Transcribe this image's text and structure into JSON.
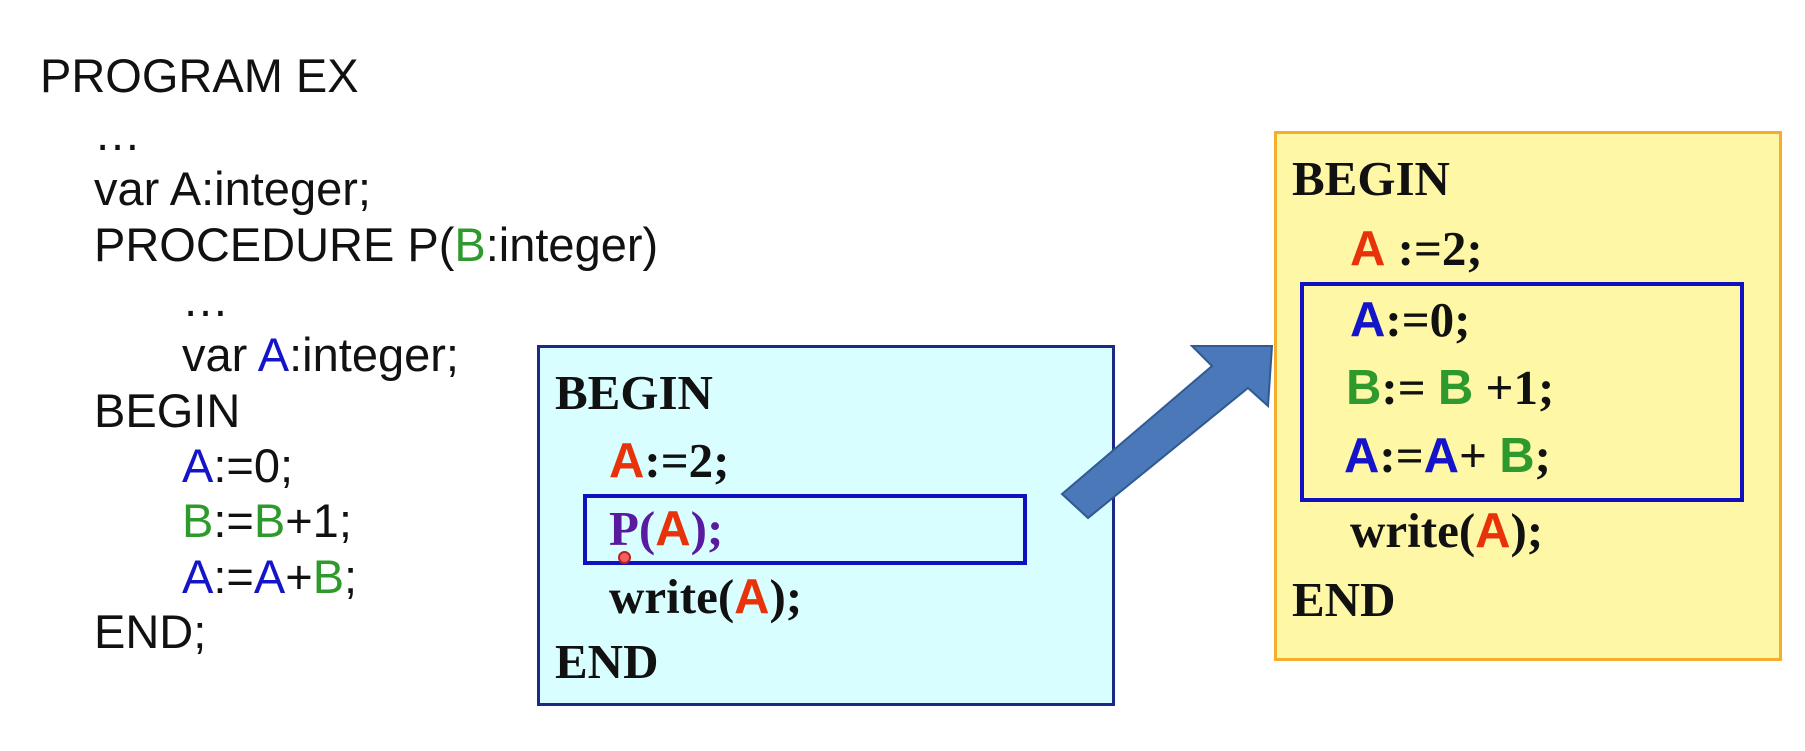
{
  "left_code": {
    "title": "PROGRAM EX",
    "ellipsis1": "…",
    "var_decl": "var A:integer;",
    "proc_kw": "PROCEDURE P(",
    "proc_param": "B",
    "proc_rest": ":integer)",
    "ellipsis2": "…",
    "inner_var_kw": "var ",
    "inner_var_name": "A",
    "inner_var_rest": ":integer;",
    "begin": "BEGIN",
    "stmt1_a": "A",
    "stmt1_rest": ":=0;",
    "stmt2_b1": "B",
    "stmt2_mid": ":=",
    "stmt2_b2": "B",
    "stmt2_rest": "+1;",
    "stmt3_a1": "A",
    "stmt3_mid": ":=",
    "stmt3_a2": "A",
    "stmt3_plus": "+",
    "stmt3_b": "B",
    "stmt3_end": ";",
    "end": "END;"
  },
  "main_box": {
    "begin": "BEGIN",
    "assign_var": "A",
    "assign_rest": ":=2;",
    "call_p": "P(",
    "call_arg": "A",
    "call_end": ");",
    "write_kw": "write(",
    "write_arg": "A",
    "write_end": ");",
    "end": "END"
  },
  "expanded_box": {
    "begin": "BEGIN",
    "assign_var": "A",
    "assign_rest": " :=2;",
    "s1_a": "A",
    "s1_rest": ":=0;",
    "s2_b1": "B",
    "s2_mid": ":= ",
    "s2_b2": "B",
    "s2_rest": " +1;",
    "s3_a1": "A",
    "s3_mid": ":=",
    "s3_a2": "A",
    "s3_plus": "+ ",
    "s3_b": "B",
    "s3_end": ";",
    "write_kw": "write(",
    "write_arg": "A",
    "write_end": ");",
    "end": "END"
  },
  "colors": {
    "local_var": "#1414c8",
    "param": "#2e9a2e",
    "global_var": "#e8320a",
    "call": "#5a1aa0",
    "main_box_fill": "#d8feff",
    "expanded_box_fill": "#fdf7a6",
    "arrow": "#4a78b8"
  }
}
